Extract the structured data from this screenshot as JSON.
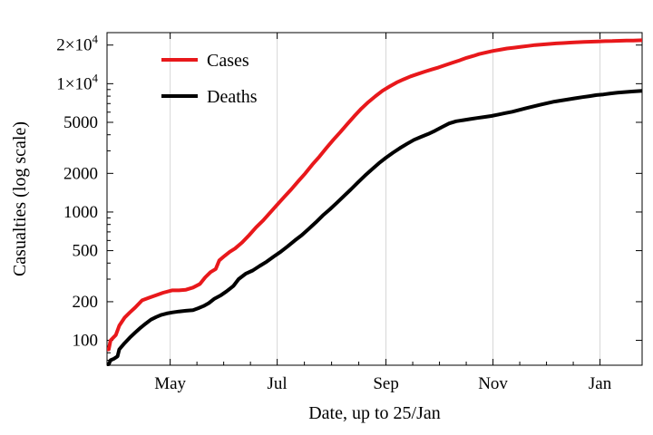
{
  "chart_data": {
    "type": "line",
    "title": "",
    "xlabel": "Date, up to 25/Jan",
    "ylabel": "Casualties (log scale)",
    "yscale": "log",
    "ylim": [
      64,
      25000
    ],
    "xlim": [
      0,
      305
    ],
    "x_unit": "days since 1 April",
    "x_ticks": [
      {
        "label": "May",
        "x": 36
      },
      {
        "label": "Jul",
        "x": 97
      },
      {
        "label": "Sep",
        "x": 159
      },
      {
        "label": "Nov",
        "x": 220
      },
      {
        "label": "Jan",
        "x": 281
      }
    ],
    "y_ticks": [
      {
        "label": "100",
        "value": 100
      },
      {
        "label": "200",
        "value": 200
      },
      {
        "label": "500",
        "value": 500
      },
      {
        "label": "1000",
        "value": 1000
      },
      {
        "label": "2000",
        "value": 2000
      },
      {
        "label": "5000",
        "value": 5000
      },
      {
        "label": "1×10",
        "sup": "4",
        "value": 10000
      },
      {
        "label": "2×10",
        "sup": "4",
        "value": 20000
      }
    ],
    "grid": "vertical",
    "legend_position": "top-left",
    "series": [
      {
        "name": "Cases",
        "color": "#e8181b",
        "x": [
          0,
          1,
          2,
          5,
          7,
          10,
          13,
          16,
          20,
          24,
          28,
          32,
          37,
          41,
          45,
          49,
          53,
          56,
          59,
          62,
          64,
          67,
          70,
          73,
          77,
          81,
          85,
          89,
          93,
          97,
          101,
          105,
          109,
          113,
          117,
          121,
          125,
          129,
          133,
          137,
          141,
          145,
          149,
          153,
          157,
          161,
          165,
          169,
          173,
          177,
          181,
          185,
          189,
          193,
          197,
          201,
          205,
          209,
          212,
          216,
          220,
          224,
          228,
          232,
          236,
          240,
          244,
          248,
          252,
          256,
          260,
          264,
          268,
          272,
          276,
          280,
          284,
          288,
          292,
          296,
          300,
          305
        ],
        "values": [
          85,
          85,
          100,
          110,
          130,
          150,
          165,
          180,
          205,
          215,
          225,
          235,
          245,
          245,
          248,
          258,
          275,
          310,
          340,
          360,
          420,
          455,
          490,
          520,
          580,
          660,
          760,
          860,
          990,
          1140,
          1310,
          1500,
          1740,
          2000,
          2340,
          2700,
          3150,
          3650,
          4200,
          4850,
          5600,
          6400,
          7200,
          8000,
          8800,
          9500,
          10200,
          10800,
          11400,
          11900,
          12400,
          12900,
          13400,
          14000,
          14600,
          15200,
          15900,
          16500,
          17000,
          17500,
          18000,
          18400,
          18800,
          19100,
          19400,
          19700,
          20000,
          20200,
          20400,
          20600,
          20750,
          20900,
          21050,
          21150,
          21250,
          21350,
          21450,
          21500,
          21600,
          21650,
          21700,
          21800
        ]
      },
      {
        "name": "Deaths",
        "color": "#000000",
        "x": [
          0,
          1,
          2,
          4,
          6,
          7,
          10,
          13,
          16,
          19,
          22,
          25,
          28,
          31,
          34,
          37,
          41,
          45,
          49,
          52,
          55,
          58,
          61,
          65,
          68,
          72,
          75,
          79,
          83,
          87,
          91,
          95,
          99,
          103,
          107,
          111,
          115,
          119,
          123,
          127,
          131,
          135,
          139,
          143,
          147,
          151,
          155,
          159,
          163,
          167,
          171,
          175,
          179,
          183,
          187,
          191,
          195,
          199,
          203,
          207,
          211,
          215,
          219,
          223,
          227,
          231,
          235,
          239,
          243,
          247,
          251,
          255,
          259,
          263,
          267,
          271,
          275,
          279,
          283,
          287,
          291,
          295,
          300,
          305
        ],
        "values": [
          65,
          65,
          70,
          72,
          75,
          85,
          95,
          105,
          115,
          125,
          135,
          145,
          152,
          158,
          162,
          165,
          168,
          170,
          172,
          178,
          185,
          195,
          210,
          225,
          240,
          265,
          300,
          330,
          350,
          380,
          410,
          450,
          490,
          540,
          600,
          660,
          740,
          830,
          940,
          1050,
          1180,
          1330,
          1500,
          1700,
          1920,
          2150,
          2400,
          2650,
          2900,
          3150,
          3400,
          3650,
          3850,
          4050,
          4300,
          4600,
          4900,
          5100,
          5200,
          5300,
          5400,
          5500,
          5600,
          5750,
          5900,
          6050,
          6250,
          6450,
          6650,
          6850,
          7050,
          7250,
          7400,
          7550,
          7700,
          7850,
          8000,
          8150,
          8250,
          8400,
          8500,
          8600,
          8700,
          8800
        ]
      }
    ]
  }
}
